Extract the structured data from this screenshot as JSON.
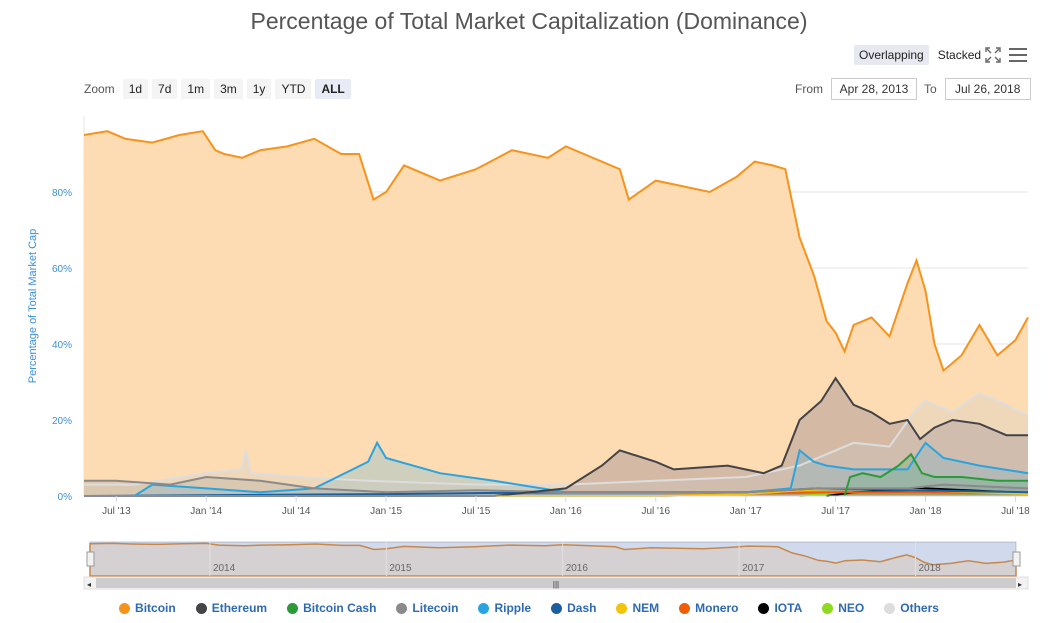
{
  "title": "Percentage of Total Market Capitalization (Dominance)",
  "modes": [
    {
      "label": "Overlapping",
      "active": true
    },
    {
      "label": "Stacked",
      "active": false
    }
  ],
  "zoom": {
    "label": "Zoom",
    "buttons": [
      "1d",
      "7d",
      "1m",
      "3m",
      "1y",
      "YTD",
      "ALL"
    ],
    "active": "ALL"
  },
  "range": {
    "from_label": "From",
    "from_value": "Apr 28, 2013",
    "to_label": "To",
    "to_value": "Jul 26, 2018"
  },
  "chart_data": {
    "type": "area",
    "title": "Percentage of Total Market Capitalization (Dominance)",
    "ylabel": "Percentage of Total Market Cap",
    "ylim": [
      0,
      100
    ],
    "yticks": [
      "0%",
      "20%",
      "40%",
      "60%",
      "80%"
    ],
    "xticks": [
      "Jul '13",
      "Jan '14",
      "Jul '14",
      "Jan '15",
      "Jul '15",
      "Jan '16",
      "Jul '16",
      "Jan '17",
      "Jul '17",
      "Jan '18",
      "Jul '18"
    ],
    "x_start": 2013.32,
    "x_end": 2018.57,
    "navigator_years": [
      "2014",
      "2015",
      "2016",
      "2017",
      "2018"
    ],
    "series": [
      {
        "name": "Bitcoin",
        "color": "#f7931a",
        "fill": "#fddcb4",
        "x": [
          2013.32,
          2013.45,
          2013.55,
          2013.7,
          2013.85,
          2013.98,
          2014.05,
          2014.1,
          2014.2,
          2014.3,
          2014.45,
          2014.6,
          2014.75,
          2014.85,
          2014.93,
          2015.0,
          2015.1,
          2015.3,
          2015.5,
          2015.7,
          2015.9,
          2016.0,
          2016.1,
          2016.3,
          2016.35,
          2016.5,
          2016.6,
          2016.8,
          2016.95,
          2017.05,
          2017.15,
          2017.22,
          2017.3,
          2017.38,
          2017.45,
          2017.5,
          2017.55,
          2017.6,
          2017.7,
          2017.8,
          2017.9,
          2017.95,
          2018.0,
          2018.05,
          2018.1,
          2018.2,
          2018.3,
          2018.4,
          2018.5,
          2018.57
        ],
        "y": [
          95,
          96,
          94,
          93,
          95,
          96,
          91,
          90,
          89,
          91,
          92,
          94,
          90,
          90,
          78,
          80,
          87,
          83,
          86,
          91,
          89,
          92,
          90,
          86,
          78,
          83,
          82,
          80,
          84,
          88,
          87,
          86,
          68,
          58,
          46,
          43,
          38,
          45,
          47,
          42,
          56,
          62,
          54,
          40,
          33,
          37,
          45,
          37,
          41,
          47
        ]
      },
      {
        "name": "Ethereum",
        "color": "#434348",
        "fill": "rgba(67,67,110,0.22)",
        "x": [
          2013.32,
          2015.6,
          2016.0,
          2016.2,
          2016.3,
          2016.5,
          2016.6,
          2016.9,
          2017.1,
          2017.2,
          2017.3,
          2017.42,
          2017.5,
          2017.6,
          2017.7,
          2017.8,
          2017.9,
          2017.97,
          2018.05,
          2018.15,
          2018.3,
          2018.45,
          2018.57
        ],
        "y": [
          0,
          0,
          2,
          8,
          12,
          9,
          7,
          8,
          6,
          8,
          20,
          25,
          31,
          24,
          22,
          19,
          20,
          15,
          18,
          20,
          19,
          16,
          16
        ]
      },
      {
        "name": "Bitcoin Cash",
        "color": "#2b9b3a",
        "fill": "rgba(43,155,58,0.25)",
        "x": [
          2017.55,
          2017.58,
          2017.65,
          2017.75,
          2017.85,
          2017.92,
          2017.98,
          2018.05,
          2018.2,
          2018.4,
          2018.57
        ],
        "y": [
          0,
          5,
          6,
          5,
          8,
          11,
          6,
          5,
          5,
          4,
          4
        ]
      },
      {
        "name": "Litecoin",
        "color": "#8a8a8a",
        "fill": "rgba(120,120,120,0.2)",
        "x": [
          2013.32,
          2013.5,
          2013.8,
          2014.0,
          2014.3,
          2014.6,
          2015.0,
          2015.5,
          2016.0,
          2016.5,
          2017.0,
          2017.4,
          2017.9,
          2018.1,
          2018.57
        ],
        "y": [
          4,
          4,
          3,
          5,
          4,
          2,
          1,
          1.5,
          1,
          1,
          1,
          2,
          2,
          3,
          2
        ]
      },
      {
        "name": "Ripple",
        "color": "#2aa4e0",
        "fill": "rgba(42,164,224,0.22)",
        "x": [
          2013.32,
          2013.6,
          2013.7,
          2014.0,
          2014.3,
          2014.6,
          2014.9,
          2014.95,
          2015.0,
          2015.3,
          2015.6,
          2016.0,
          2016.5,
          2017.0,
          2017.25,
          2017.3,
          2017.38,
          2017.45,
          2017.6,
          2017.9,
          2018.0,
          2018.1,
          2018.3,
          2018.57
        ],
        "y": [
          0,
          0,
          3,
          2,
          1,
          2,
          9,
          14,
          10,
          6,
          4,
          1,
          1,
          1,
          2,
          12,
          9,
          8,
          7,
          7,
          14,
          10,
          8,
          6
        ]
      },
      {
        "name": "Dash",
        "color": "#1a5fa0",
        "fill": "rgba(26,95,160,0.2)",
        "x": [
          2013.32,
          2015.0,
          2016.0,
          2017.0,
          2017.4,
          2017.9,
          2018.57
        ],
        "y": [
          0,
          0.5,
          1,
          1,
          2,
          1.5,
          1
        ]
      },
      {
        "name": "NEM",
        "color": "#f2c40c",
        "fill": "rgba(242,196,12,0.2)",
        "x": [
          2013.32,
          2016.5,
          2017.0,
          2017.3,
          2017.6,
          2018.0,
          2018.57
        ],
        "y": [
          0,
          0,
          0.5,
          1.5,
          2,
          1.5,
          0.5
        ]
      },
      {
        "name": "Monero",
        "color": "#f25c05",
        "fill": "rgba(242,92,5,0.2)",
        "x": [
          2013.32,
          2016.5,
          2017.0,
          2017.5,
          2018.0,
          2018.57
        ],
        "y": [
          0,
          0,
          0.6,
          1,
          1,
          0.8
        ]
      },
      {
        "name": "IOTA",
        "color": "#000000",
        "fill": "rgba(0,0,0,0.08)",
        "x": [
          2017.45,
          2017.6,
          2017.9,
          2018.0,
          2018.57
        ],
        "y": [
          0,
          1,
          1.5,
          2,
          0.8
        ]
      },
      {
        "name": "NEO",
        "color": "#8fd923",
        "fill": "rgba(143,217,35,0.2)",
        "x": [
          2017.3,
          2017.6,
          2017.9,
          2018.1,
          2018.57
        ],
        "y": [
          0,
          1,
          1.5,
          1.3,
          0.8
        ]
      },
      {
        "name": "Others",
        "color": "#dddddd",
        "fill": "rgba(200,200,200,0.25)",
        "x": [
          2013.32,
          2013.6,
          2014.0,
          2014.2,
          2014.22,
          2014.25,
          2014.5,
          2014.9,
          2015.5,
          2016.0,
          2016.5,
          2017.0,
          2017.3,
          2017.5,
          2017.6,
          2017.8,
          2017.95,
          2018.0,
          2018.15,
          2018.3,
          2018.45,
          2018.57
        ],
        "y": [
          3,
          3,
          6,
          7,
          12,
          6,
          5,
          4,
          3,
          3,
          4,
          5,
          8,
          12,
          14,
          13,
          23,
          25,
          22,
          27,
          24,
          21
        ]
      }
    ]
  }
}
